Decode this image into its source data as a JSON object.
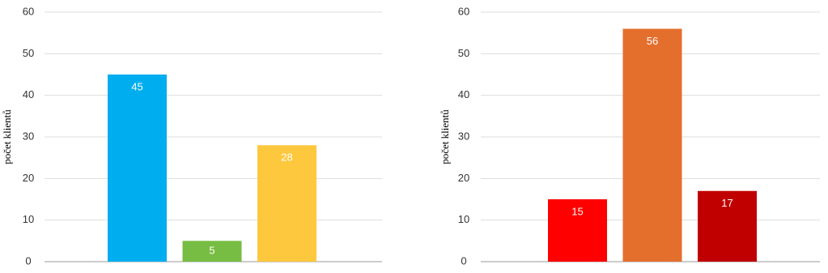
{
  "chart_data": [
    {
      "type": "bar",
      "y_label": "počet klientů",
      "categories": [
        null,
        null,
        null
      ],
      "values": [
        45,
        5,
        28
      ],
      "colors": [
        "#00aeef",
        "#77bc43",
        "#fdc83d"
      ],
      "ylim": [
        0,
        60
      ],
      "yticks": [
        0,
        10,
        20,
        30,
        40,
        50,
        60
      ],
      "grid": true
    },
    {
      "type": "bar",
      "y_label": "počet klientů",
      "categories": [
        null,
        null,
        null
      ],
      "values": [
        15,
        56,
        17
      ],
      "colors": [
        "#ff0000",
        "#e46f2d",
        "#c00000"
      ],
      "ylim": [
        0,
        60
      ],
      "yticks": [
        0,
        10,
        20,
        30,
        40,
        50,
        60
      ],
      "grid": true
    }
  ]
}
